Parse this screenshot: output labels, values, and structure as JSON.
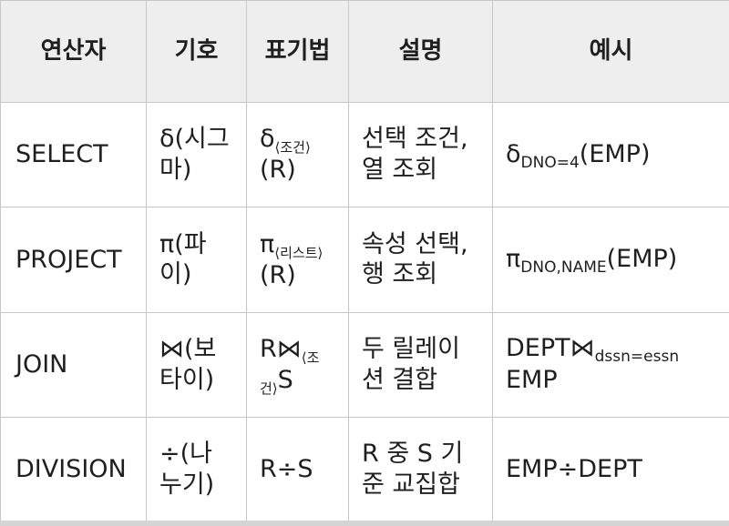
{
  "table": {
    "headers": [
      "연산자",
      "기호",
      "표기법",
      "설명",
      "예시"
    ],
    "rows": [
      {
        "operator": "SELECT",
        "symbol": "δ(시그마)",
        "notation_main": "δ",
        "notation_sub": "⟨조건⟩",
        "notation_rest": "(R)",
        "description": "선택 조건, 열 조회",
        "example_main": "δ",
        "example_sub": "DNO=4",
        "example_rest": "(EMP)"
      },
      {
        "operator": "PROJECT",
        "symbol": "π(파이)",
        "notation_main": "π",
        "notation_sub": "⟨리스트⟩",
        "notation_rest": "(R)",
        "description": "속성 선택, 행 조회",
        "example_main": "π",
        "example_sub": "DNO,NAME",
        "example_rest": "(EMP)"
      },
      {
        "operator": "JOIN",
        "symbol": "⋈(보타이)",
        "notation_main": "R⋈",
        "notation_sub": "⟨조건⟩",
        "notation_rest": "S",
        "description": "두 릴레이션 결합",
        "example_main": "DEPT⋈",
        "example_sub": "dssn=essn",
        "example_rest": "EMP"
      },
      {
        "operator": "DIVISION",
        "symbol": "÷(나누기)",
        "notation_main": "R÷S",
        "notation_sub": "",
        "notation_rest": "",
        "description": "R 중 S 기준 교집합",
        "example_main": "EMP÷DEPT",
        "example_sub": "",
        "example_rest": ""
      }
    ]
  }
}
